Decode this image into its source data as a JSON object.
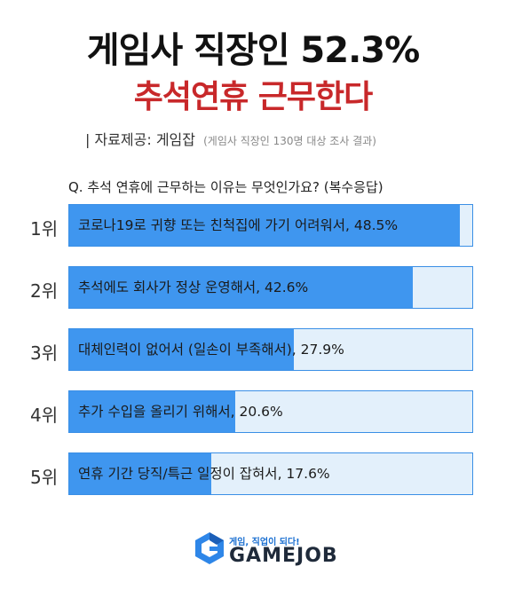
{
  "header": {
    "title_line1": "게임사 직장인 52.3%",
    "title_line2": "추석연휴 근무한다",
    "source_label": "| 자료제공: 게임잡",
    "source_note": "(게임사 직장인 130명 대상 조사 결과)"
  },
  "question": "Q. 추석 연휴에 근무하는 이유는 무엇인가요? (복수응답)",
  "chart_data": {
    "type": "bar",
    "orientation": "horizontal",
    "xlim": [
      0,
      50
    ],
    "categories": [
      "1위",
      "2위",
      "3위",
      "4위",
      "5위"
    ],
    "labels": [
      "코로나19로 귀향 또는 친척집에 가기 어려워서, 48.5%",
      "추석에도 회사가 정상 운영해서, 42.6%",
      "대체인력이 없어서 (일손이 부족해서), 27.9%",
      "추가 수입을 올리기 위해서, 20.6%",
      "연휴 기간 당직/특근 일정이 잡혀서, 17.6%"
    ],
    "values": [
      48.5,
      42.6,
      27.9,
      20.6,
      17.6
    ]
  },
  "brand": {
    "slogan": "게임, 직업이 되다!",
    "name": "GAMEJOB",
    "icon": "gamejob-logo-icon"
  },
  "colors": {
    "bar_fill": "#3f96ef",
    "bar_track": "#e3f0fb",
    "title_red": "#c8282a"
  }
}
